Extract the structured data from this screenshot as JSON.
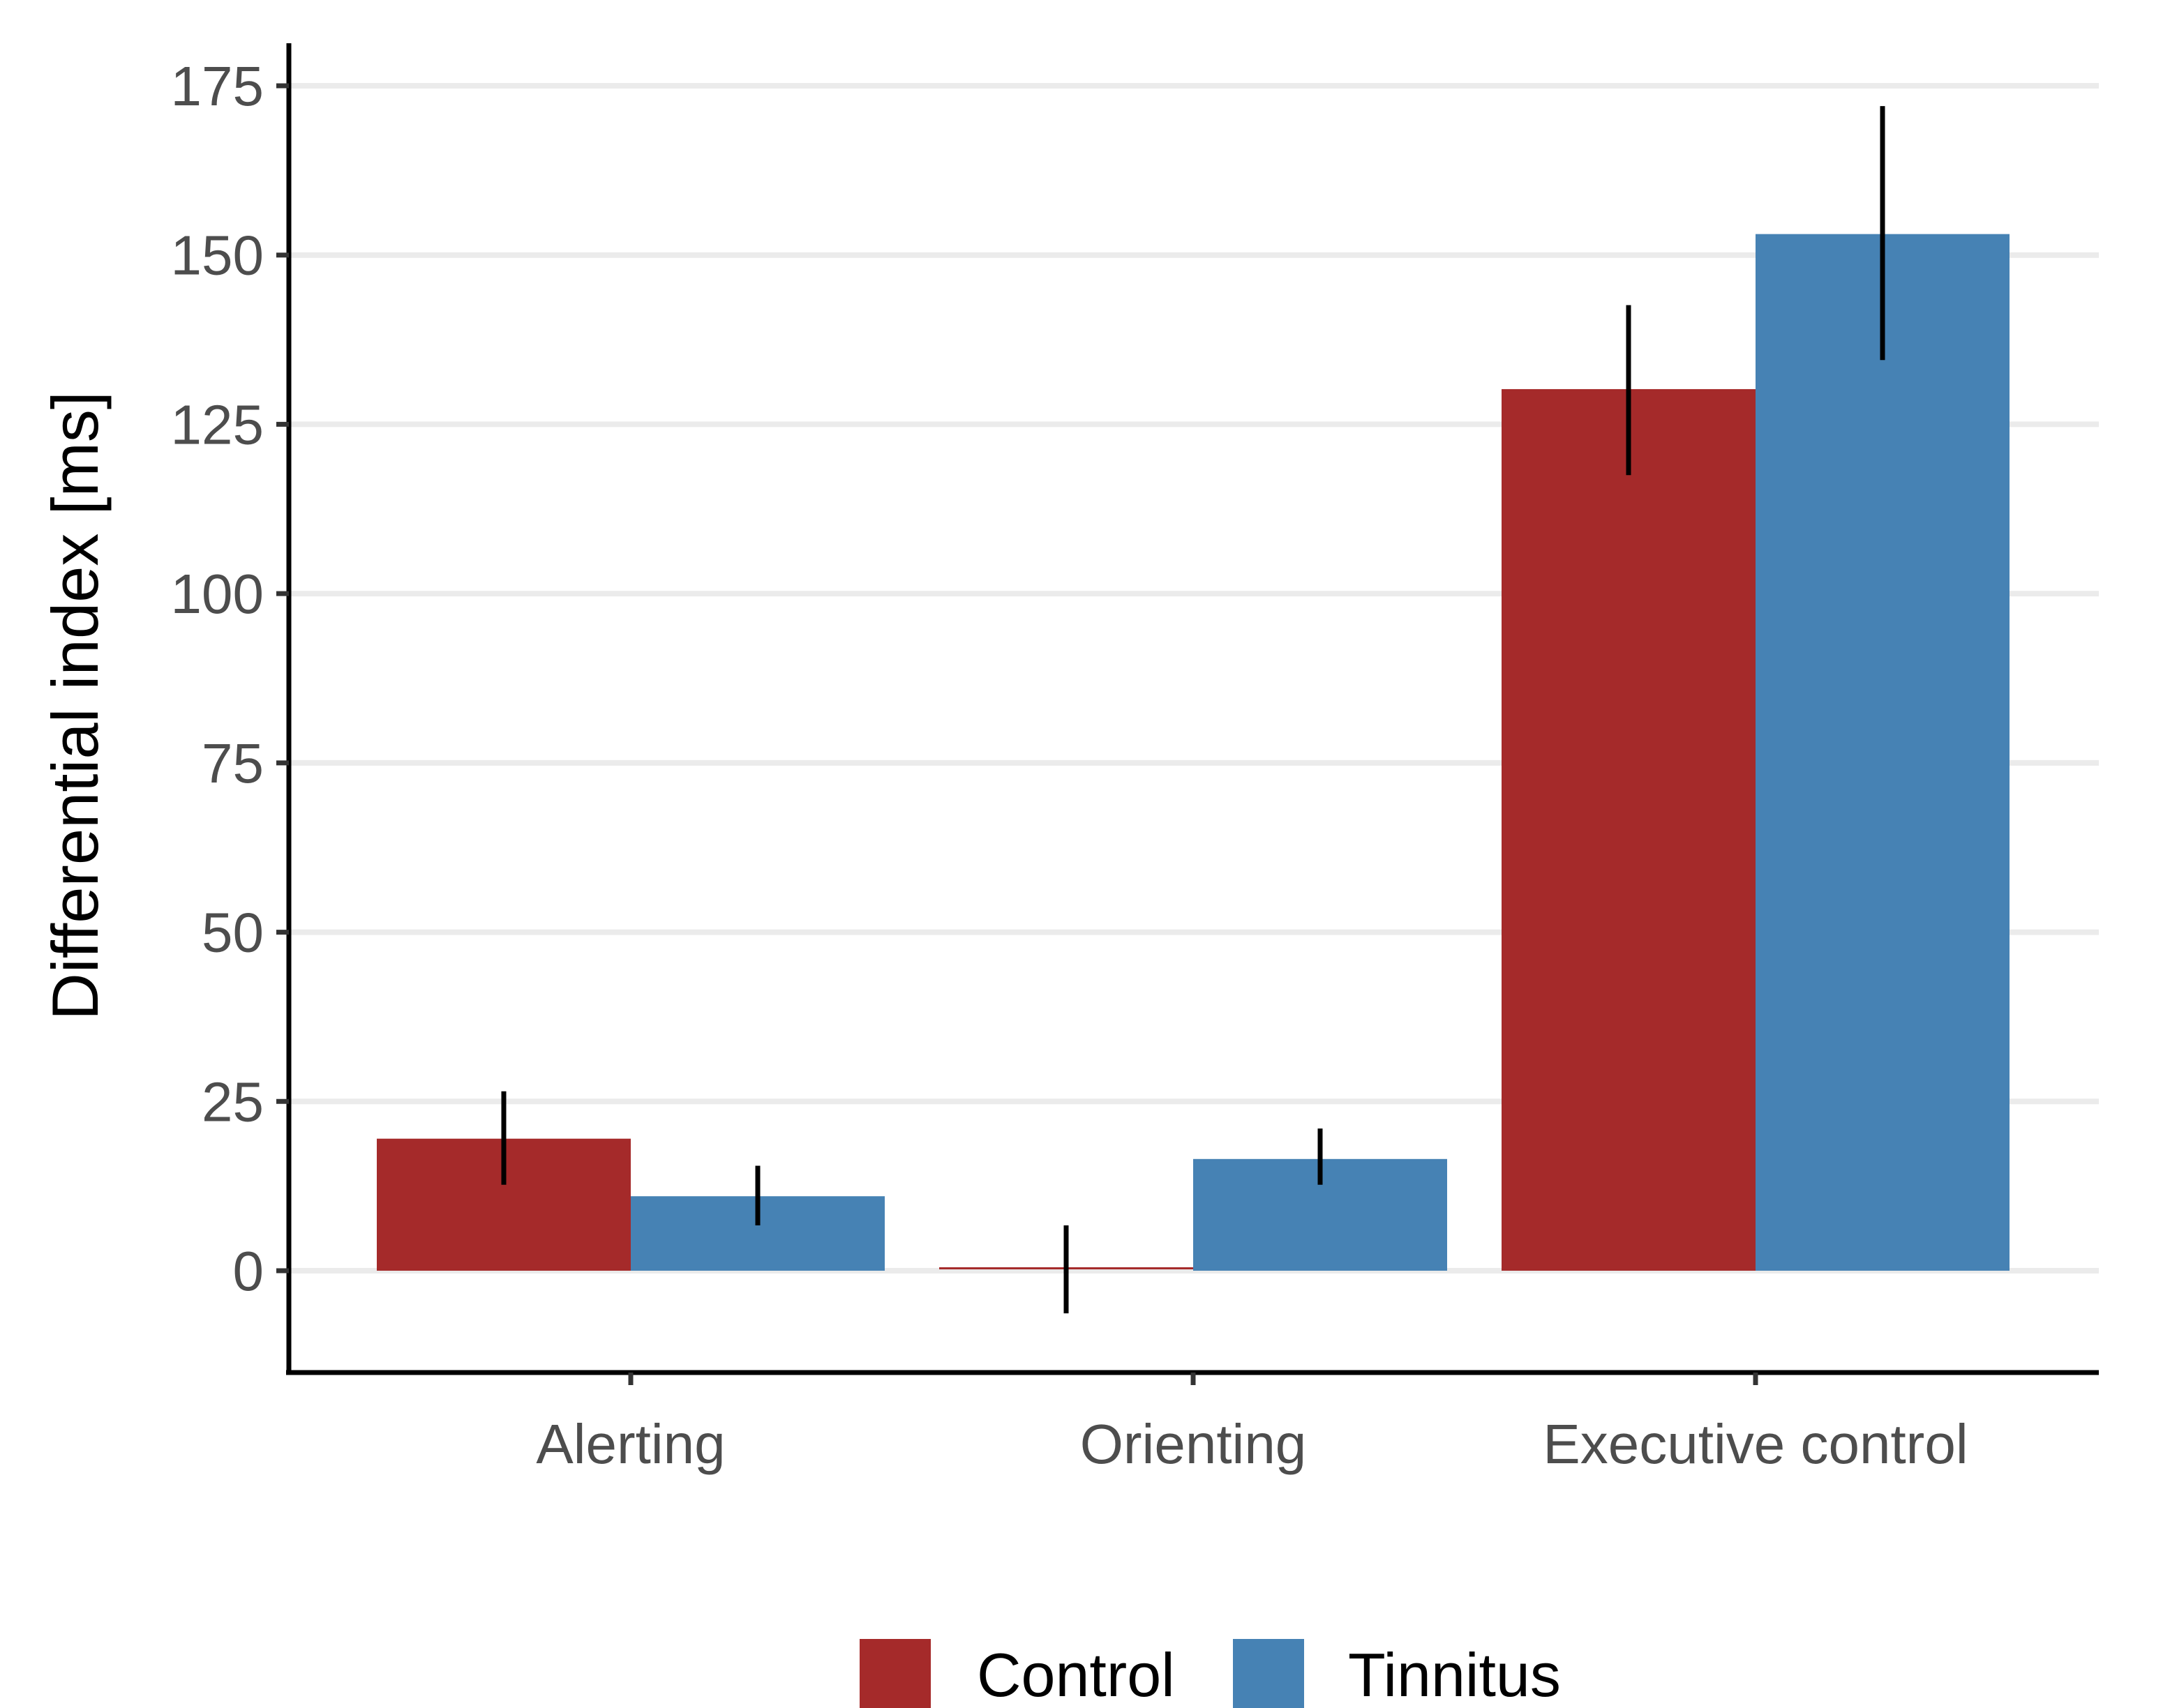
{
  "chart_data": {
    "type": "bar",
    "title": "",
    "xlabel": "",
    "ylabel": "Differential index [ms]",
    "categories": [
      "Alerting",
      "Orienting",
      "Executive control"
    ],
    "series": [
      {
        "name": "Control",
        "color": "#a52a2a",
        "values": [
          19.5,
          0.2,
          130.2
        ],
        "error_low": [
          12.7,
          -6.3,
          117.5
        ],
        "error_high": [
          26.5,
          6.7,
          142.6
        ]
      },
      {
        "name": "Tinnitus",
        "color": "#4682b4",
        "values": [
          11,
          16.5,
          153.1
        ],
        "error_low": [
          6.7,
          12.7,
          134.5
        ],
        "error_high": [
          15.5,
          21.0,
          172.0
        ]
      }
    ],
    "ylim": [
      -15,
      180
    ],
    "yticks": [
      0,
      25,
      50,
      75,
      100,
      125,
      150,
      175
    ],
    "grid": true,
    "legend_position": "bottom"
  }
}
